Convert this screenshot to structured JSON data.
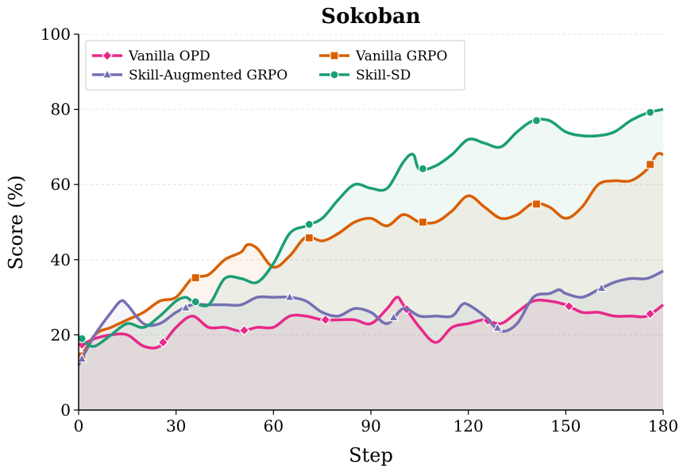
{
  "chart_data": {
    "type": "line",
    "title": "Sokoban",
    "xlabel": "Step",
    "ylabel": "Score (%)",
    "xlim": [
      0,
      180
    ],
    "ylim": [
      0,
      100
    ],
    "xticks": [
      0,
      30,
      60,
      90,
      120,
      150,
      180
    ],
    "yticks": [
      0,
      20,
      40,
      60,
      80,
      100
    ],
    "grid": "horizontal dashed",
    "legend_position": "top-left",
    "series": [
      {
        "name": "Vanilla OPD",
        "color": "#e7298a",
        "marker": "diamond",
        "x": [
          0,
          5,
          10,
          15,
          20,
          25,
          30,
          35,
          40,
          45,
          50,
          55,
          60,
          65,
          70,
          75,
          80,
          85,
          90,
          95,
          98,
          100,
          105,
          110,
          115,
          120,
          125,
          130,
          135,
          140,
          145,
          150,
          155,
          160,
          165,
          170,
          175,
          180
        ],
        "y": [
          17,
          19,
          20,
          20,
          17,
          17,
          22,
          25,
          22,
          22,
          21,
          22,
          22,
          25,
          25,
          24,
          24,
          24,
          23,
          27,
          30,
          28,
          22,
          18,
          22,
          23,
          24,
          23,
          26,
          29,
          29,
          28,
          26,
          26,
          25,
          25,
          25,
          28
        ],
        "marker_x": [
          1,
          26,
          51,
          76,
          101,
          126,
          151,
          176
        ]
      },
      {
        "name": "Vanilla GRPO",
        "color": "#d95f02",
        "marker": "square",
        "x": [
          0,
          5,
          10,
          15,
          20,
          25,
          30,
          35,
          40,
          45,
          50,
          52,
          55,
          60,
          65,
          70,
          75,
          80,
          85,
          90,
          95,
          100,
          105,
          110,
          115,
          120,
          125,
          130,
          135,
          140,
          145,
          150,
          155,
          160,
          165,
          170,
          175,
          178,
          180
        ],
        "y": [
          13,
          20,
          22,
          24,
          26,
          29,
          30,
          35,
          36,
          40,
          42,
          44,
          43,
          38,
          41,
          46,
          45,
          47,
          50,
          51,
          49,
          52,
          50,
          50,
          53,
          57,
          54,
          51,
          52,
          55,
          54,
          51,
          54,
          60,
          61,
          61,
          64,
          68,
          68
        ],
        "marker_x": [
          1,
          36,
          71,
          106,
          141,
          176
        ]
      },
      {
        "name": "Skill-Augmented GRPO",
        "color": "#7570b3",
        "marker": "triangle",
        "x": [
          0,
          5,
          10,
          13,
          15,
          20,
          25,
          30,
          35,
          40,
          45,
          50,
          55,
          60,
          65,
          70,
          75,
          80,
          85,
          90,
          95,
          100,
          105,
          110,
          115,
          118,
          120,
          125,
          130,
          135,
          140,
          145,
          148,
          150,
          155,
          160,
          165,
          170,
          175,
          180
        ],
        "y": [
          12,
          20,
          26,
          29,
          28,
          23,
          23,
          26,
          28,
          28,
          28,
          28,
          30,
          30,
          30,
          29,
          26,
          25,
          27,
          26,
          23,
          27,
          25,
          25,
          25,
          28,
          28,
          25,
          21,
          23,
          30,
          31,
          32,
          31,
          30,
          32,
          34,
          35,
          35,
          37
        ],
        "marker_x": [
          1,
          33,
          65,
          97,
          129,
          161
        ]
      },
      {
        "name": "Skill-SD",
        "color": "#1b9e77",
        "marker": "circle",
        "x": [
          0,
          2,
          5,
          10,
          15,
          20,
          25,
          30,
          33,
          35,
          40,
          45,
          50,
          55,
          60,
          65,
          70,
          75,
          80,
          85,
          90,
          95,
          100,
          103,
          105,
          110,
          115,
          120,
          125,
          130,
          135,
          140,
          145,
          150,
          155,
          160,
          165,
          170,
          175,
          180
        ],
        "y": [
          20,
          18,
          17,
          20,
          23,
          22,
          25,
          29,
          30,
          29,
          28,
          35,
          35,
          34,
          39,
          47,
          49,
          51,
          56,
          60,
          59,
          59,
          66,
          68,
          64,
          65,
          68,
          72,
          71,
          70,
          74,
          77,
          77,
          74,
          73,
          73,
          74,
          77,
          79,
          80
        ],
        "marker_x": [
          1,
          36,
          71,
          106,
          141,
          176
        ]
      }
    ]
  }
}
